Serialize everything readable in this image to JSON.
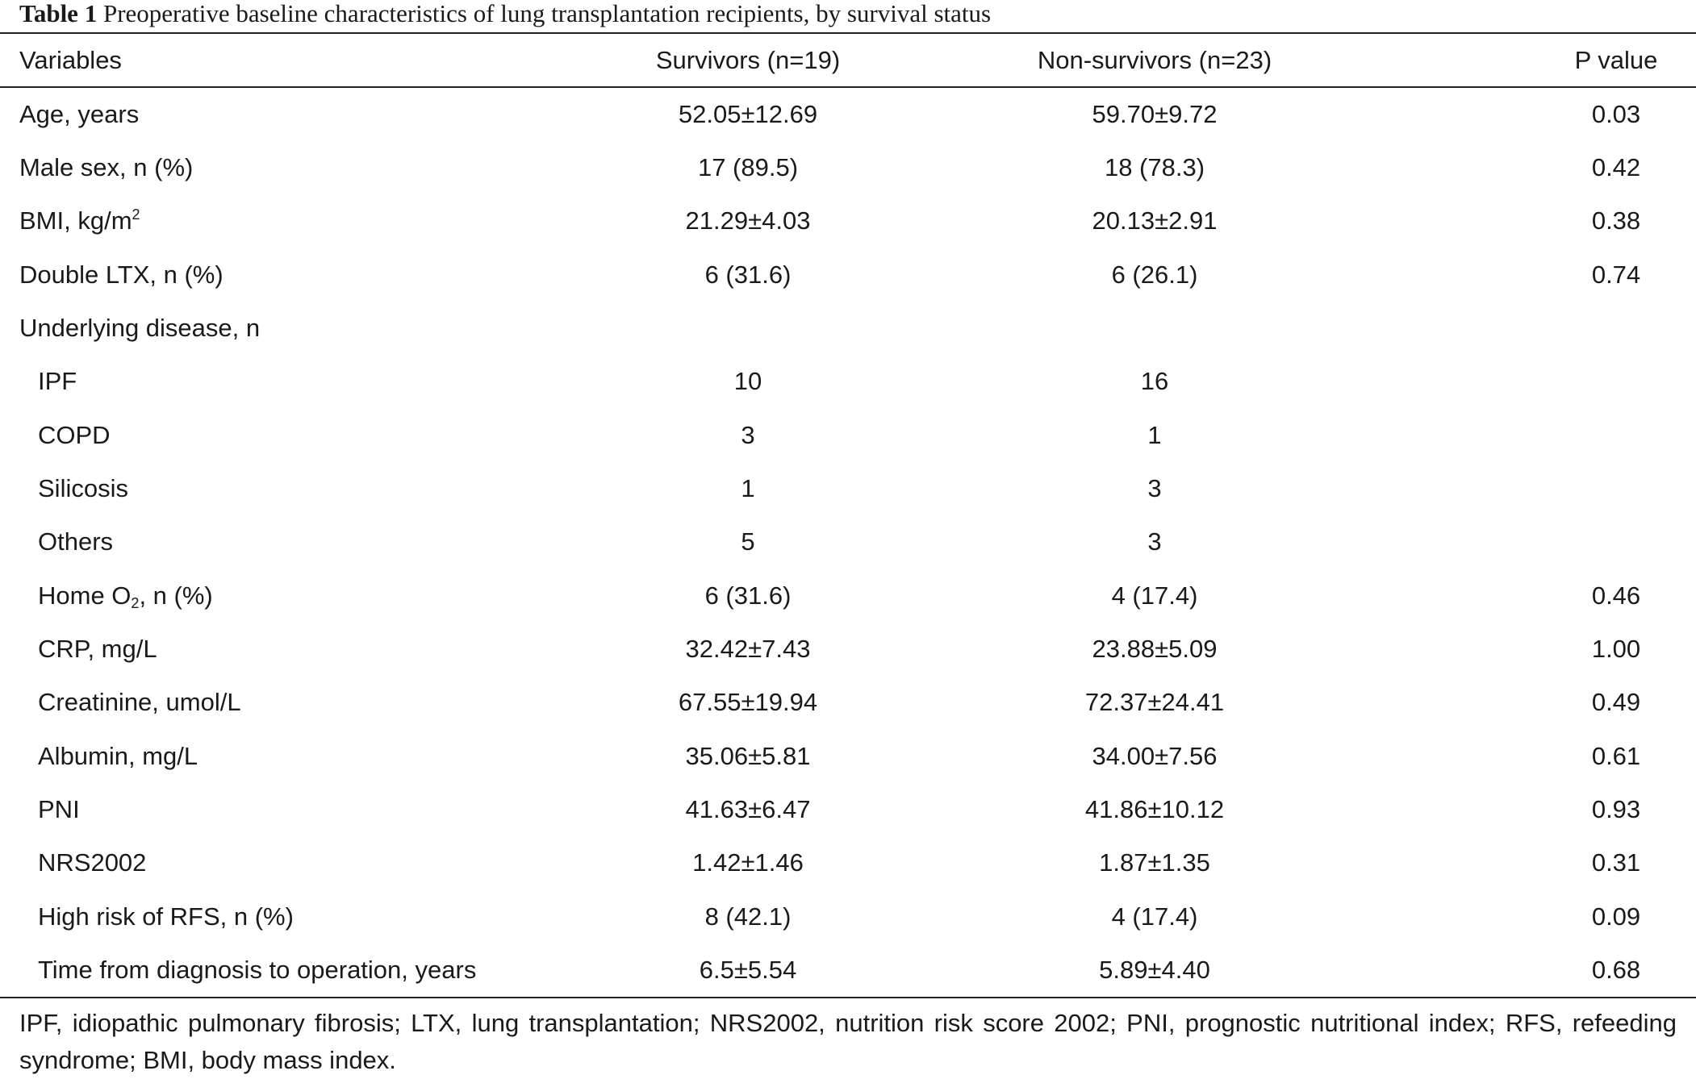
{
  "caption": {
    "label": "Table 1",
    "text": "Preoperative baseline characteristics of lung transplantation recipients, by survival status"
  },
  "table": {
    "headers": [
      "Variables",
      "Survivors (n=19)",
      "Non-survivors (n=23)",
      "P value"
    ],
    "rows": [
      {
        "variable": "Age, years",
        "survivors": "52.05±12.69",
        "non_survivors": "59.70±9.72",
        "p": "0.03"
      },
      {
        "variable": "Male sex, n (%)",
        "survivors": "17 (89.5)",
        "non_survivors": "18 (78.3)",
        "p": "0.42"
      },
      {
        "variable": "BMI, kg/m",
        "variable_sup": "2",
        "survivors": "21.29±4.03",
        "non_survivors": "20.13±2.91",
        "p": "0.38"
      },
      {
        "variable": "Double LTX, n (%)",
        "survivors": "6 (31.6)",
        "non_survivors": "6 (26.1)",
        "p": "0.74"
      },
      {
        "variable": "Underlying disease, n",
        "survivors": "",
        "non_survivors": "",
        "p": ""
      },
      {
        "variable": "IPF",
        "survivors": "10",
        "non_survivors": "16",
        "p": ""
      },
      {
        "variable": "COPD",
        "survivors": "3",
        "non_survivors": "1",
        "p": ""
      },
      {
        "variable": "Silicosis",
        "survivors": "1",
        "non_survivors": "3",
        "p": ""
      },
      {
        "variable": "Others",
        "survivors": "5",
        "non_survivors": "3",
        "p": ""
      },
      {
        "variable": "Home O",
        "variable_sub": "2",
        "variable_suffix": ", n (%)",
        "survivors": "6 (31.6)",
        "non_survivors": "4 (17.4)",
        "p": "0.46"
      },
      {
        "variable": "CRP, mg/L",
        "survivors": "32.42±7.43",
        "non_survivors": "23.88±5.09",
        "p": "1.00"
      },
      {
        "variable": "Creatinine, umol/L",
        "survivors": "67.55±19.94",
        "non_survivors": "72.37±24.41",
        "p": "0.49"
      },
      {
        "variable": "Albumin, mg/L",
        "survivors": "35.06±5.81",
        "non_survivors": "34.00±7.56",
        "p": "0.61"
      },
      {
        "variable": "PNI",
        "survivors": "41.63±6.47",
        "non_survivors": "41.86±10.12",
        "p": "0.93"
      },
      {
        "variable": "NRS2002",
        "survivors": "1.42±1.46",
        "non_survivors": "1.87±1.35",
        "p": "0.31"
      },
      {
        "variable": "High risk of RFS, n (%)",
        "survivors": "8 (42.1)",
        "non_survivors": "4 (17.4)",
        "p": "0.09"
      },
      {
        "variable": "Time from diagnosis to operation, years",
        "survivors": "6.5±5.54",
        "non_survivors": "5.89±4.40",
        "p": "0.68"
      }
    ]
  },
  "footnote": "IPF, idiopathic pulmonary fibrosis; LTX, lung transplantation; NRS2002, nutrition risk score 2002; PNI, prognostic nutritional index; RFS, refeeding syndrome; BMI, body mass index."
}
